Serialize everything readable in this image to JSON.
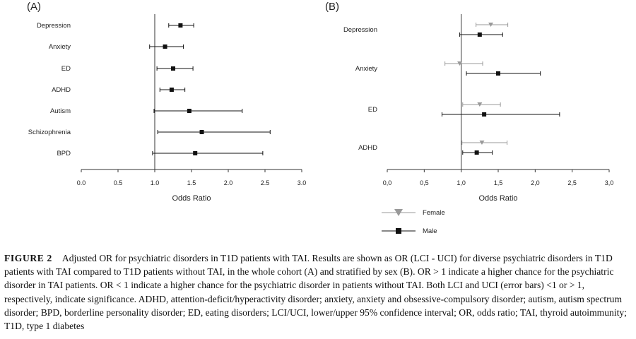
{
  "caption": {
    "label": "FIGURE 2",
    "text": "Adjusted OR for psychiatric disorders in T1D patients with TAI. Results are shown as OR (LCI - UCI) for diverse psychiatric disorders in T1D patients with TAI compared to T1D patients without TAI, in the whole cohort (A) and stratified by sex (B). OR > 1 indicate a higher chance for the psychiatric disorder in TAI patients. OR < 1 indicate a higher chance for the psychiatric disorder in patients without TAI. Both LCI and UCI (error bars) <1 or > 1, respectively, indicate significance. ADHD, attention-deficit/hyperactivity disorder; anxiety, anxiety and obsessive-compulsory disorder; autism, autism spectrum disorder; BPD, borderline personality disorder; ED, eating disorders; LCI/UCI, lower/upper 95% confidence interval; OR, odds ratio; TAI, thyroid autoimmunity; T1D, type 1 diabetes"
  },
  "chart_data": [
    {
      "type": "forest",
      "panel_label": "(A)",
      "xlabel": "Odds Ratio",
      "xlim": [
        0.0,
        3.0
      ],
      "xticks": [
        "0.0",
        "0.5",
        "1.0",
        "1.5",
        "2.0",
        "2.5",
        "3.0"
      ],
      "reference_line": 1.0,
      "categories": [
        "Depression",
        "Anxiety",
        "ED",
        "ADHD",
        "Autism",
        "Schizophrenia",
        "BPD"
      ],
      "series": [
        {
          "marker": "square",
          "color": "#111111",
          "points": [
            {
              "or": 1.35,
              "lci": 1.19,
              "uci": 1.53
            },
            {
              "or": 1.14,
              "lci": 0.93,
              "uci": 1.39
            },
            {
              "or": 1.25,
              "lci": 1.03,
              "uci": 1.52
            },
            {
              "or": 1.23,
              "lci": 1.07,
              "uci": 1.41
            },
            {
              "or": 1.47,
              "lci": 0.99,
              "uci": 2.19
            },
            {
              "or": 1.64,
              "lci": 1.04,
              "uci": 2.57
            },
            {
              "or": 1.55,
              "lci": 0.97,
              "uci": 2.47
            }
          ]
        }
      ]
    },
    {
      "type": "forest",
      "panel_label": "(B)",
      "xlabel": "Odds Ratio",
      "xlim": [
        0.0,
        3.0
      ],
      "xticks": [
        "0,0",
        "0,5",
        "1,0",
        "1,5",
        "2,0",
        "2,5",
        "3,0"
      ],
      "reference_line": 1.0,
      "categories": [
        "Depression",
        "Anxiety",
        "ED",
        "ADHD"
      ],
      "legend_position": "bottom",
      "series": [
        {
          "name": "Female",
          "marker": "triangle-down",
          "color": "#999999",
          "points": [
            {
              "or": 1.4,
              "lci": 1.2,
              "uci": 1.63
            },
            {
              "or": 0.98,
              "lci": 0.78,
              "uci": 1.29
            },
            {
              "or": 1.25,
              "lci": 1.02,
              "uci": 1.53
            },
            {
              "or": 1.28,
              "lci": 1.01,
              "uci": 1.62
            }
          ]
        },
        {
          "name": "Male",
          "marker": "square",
          "color": "#111111",
          "points": [
            {
              "or": 1.25,
              "lci": 0.98,
              "uci": 1.56
            },
            {
              "or": 1.5,
              "lci": 1.07,
              "uci": 2.07
            },
            {
              "or": 1.31,
              "lci": 0.74,
              "uci": 2.33
            },
            {
              "or": 1.21,
              "lci": 1.02,
              "uci": 1.42
            }
          ]
        }
      ]
    }
  ]
}
